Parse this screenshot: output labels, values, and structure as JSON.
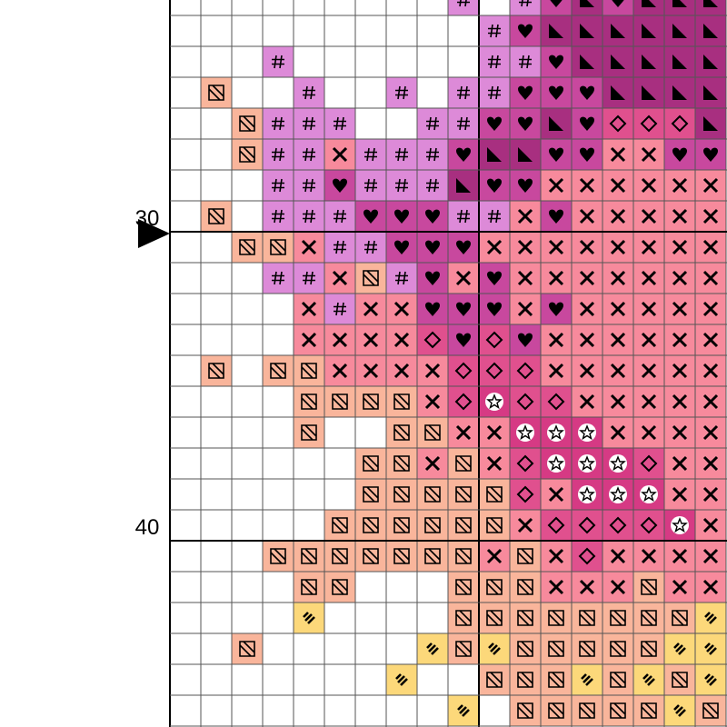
{
  "row_labels": [
    "30",
    "40"
  ]
}
